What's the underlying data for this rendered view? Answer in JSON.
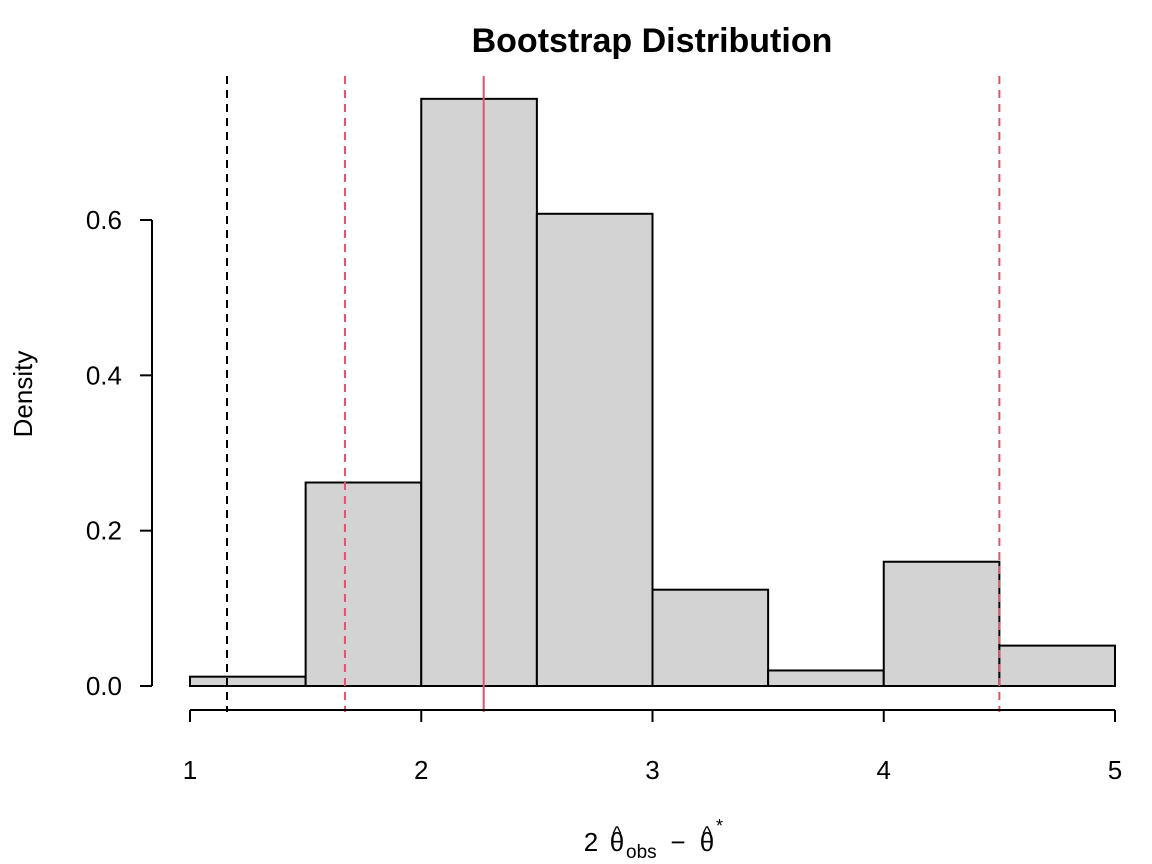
{
  "chart_data": {
    "type": "bar",
    "title": "Bootstrap Distribution",
    "ylabel": "Density",
    "xlabel": {
      "prefix": "2",
      "theta_hat": "θ",
      "hat": "^",
      "subscript": "obs",
      "minus": "−",
      "star": "*"
    },
    "xlim": [
      1,
      5
    ],
    "ylim": [
      0,
      0.6
    ],
    "x_ticks": [
      1,
      2,
      3,
      4,
      5
    ],
    "x_tick_labels": [
      "1",
      "2",
      "3",
      "4",
      "5"
    ],
    "y_ticks": [
      0.0,
      0.2,
      0.4,
      0.6
    ],
    "y_tick_labels": [
      "0.0",
      "0.2",
      "0.4",
      "0.6"
    ],
    "bins": [
      {
        "x0": 1.0,
        "x1": 1.5,
        "density": 0.012
      },
      {
        "x0": 1.5,
        "x1": 2.0,
        "density": 0.262
      },
      {
        "x0": 2.0,
        "x1": 2.5,
        "density": 0.756
      },
      {
        "x0": 2.5,
        "x1": 3.0,
        "density": 0.608
      },
      {
        "x0": 3.0,
        "x1": 3.5,
        "density": 0.124
      },
      {
        "x0": 3.5,
        "x1": 4.0,
        "density": 0.02
      },
      {
        "x0": 4.0,
        "x1": 4.5,
        "density": 0.16
      },
      {
        "x0": 4.5,
        "x1": 5.0,
        "density": 0.052
      }
    ],
    "vlines": [
      {
        "x": 1.16,
        "style": "dashed",
        "color": "#000000"
      },
      {
        "x": 1.67,
        "style": "dashed",
        "color": "#DF536B"
      },
      {
        "x": 2.27,
        "style": "solid",
        "color": "#DF536B"
      },
      {
        "x": 4.5,
        "style": "dashed",
        "color": "#DF536B"
      }
    ],
    "grid": false,
    "bar_fill": "#D3D3D3",
    "bar_stroke": "#000000"
  }
}
